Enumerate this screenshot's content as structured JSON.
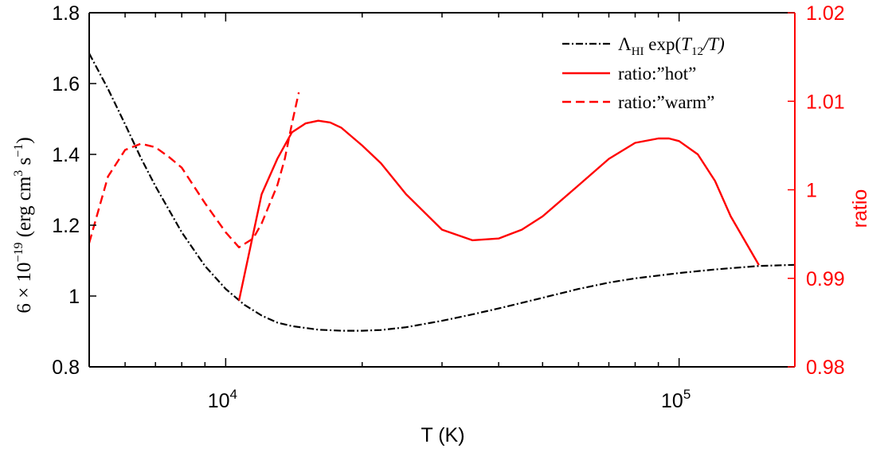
{
  "chart_data": {
    "type": "line",
    "title": "",
    "xlabel": "T (K)",
    "xscale": "log",
    "xlim": [
      5000,
      180000
    ],
    "x_ticks": [
      {
        "value": 10000,
        "base": "10",
        "exp": "4"
      },
      {
        "value": 100000,
        "base": "10",
        "exp": "5"
      }
    ],
    "y_left": {
      "label": "6 × 10⁻¹⁹ (erg cm³ s⁻¹)",
      "label_parts": {
        "coef": "6 × 10",
        "coef_exp": "−19",
        "open": " (erg cm",
        "cm_exp": "3",
        "mid": " s",
        "s_exp": "−1",
        "close": ")"
      },
      "ylim": [
        0.8,
        1.8
      ],
      "ticks": [
        "0.8",
        "1",
        "1.2",
        "1.4",
        "1.6",
        "1.8"
      ],
      "color": "#000000"
    },
    "y_right": {
      "label": "ratio",
      "ylim": [
        0.98,
        1.02
      ],
      "ticks": [
        "0.98",
        "0.99",
        "1",
        "1.01",
        "1.02"
      ],
      "color": "#ff0000"
    },
    "legend": {
      "position": "top-right",
      "entries": [
        {
          "label": "Λ_HI exp(T_12/T)",
          "parts": {
            "lambda": "Λ",
            "lambda_sub": "HI",
            "exp": " exp(",
            "t": "T",
            "t_sub": "12",
            "tail": "/T)"
          }
        },
        {
          "label": "ratio:”hot”"
        },
        {
          "label": "ratio:”warm”"
        }
      ]
    },
    "series": [
      {
        "name": "Λ_HI exp(T_12/T)",
        "axis": "left",
        "color": "#000000",
        "style": "dashdot",
        "x": [
          5000,
          5500,
          6000,
          6500,
          7000,
          8000,
          9000,
          10000,
          11000,
          12000,
          13000,
          14000,
          16000,
          18000,
          20000,
          22000,
          25000,
          30000,
          35000,
          40000,
          50000,
          60000,
          70000,
          80000,
          100000,
          120000,
          150000,
          180000
        ],
        "y": [
          1.685,
          1.585,
          1.485,
          1.39,
          1.31,
          1.18,
          1.085,
          1.02,
          0.975,
          0.945,
          0.925,
          0.915,
          0.905,
          0.902,
          0.902,
          0.904,
          0.912,
          0.93,
          0.948,
          0.965,
          0.995,
          1.02,
          1.038,
          1.05,
          1.065,
          1.075,
          1.085,
          1.088
        ]
      },
      {
        "name": "ratio:”hot”",
        "axis": "right",
        "color": "#ff0000",
        "style": "solid",
        "x": [
          10700,
          12000,
          13000,
          14000,
          15000,
          16000,
          17000,
          18000,
          20000,
          22000,
          25000,
          30000,
          35000,
          40000,
          45000,
          50000,
          60000,
          70000,
          80000,
          90000,
          95000,
          100000,
          110000,
          120000,
          130000,
          150000
        ],
        "y": [
          0.9875,
          0.9995,
          1.0035,
          1.0065,
          1.0075,
          1.0078,
          1.0076,
          1.007,
          1.005,
          1.003,
          0.9995,
          0.9955,
          0.9943,
          0.9945,
          0.9955,
          0.997,
          1.0005,
          1.0035,
          1.0053,
          1.0058,
          1.0058,
          1.0055,
          1.004,
          1.001,
          0.997,
          0.9915
        ]
      },
      {
        "name": "ratio:”warm”",
        "axis": "right",
        "color": "#ff0000",
        "style": "dashed",
        "x": [
          5000,
          5500,
          6000,
          6500,
          7000,
          7500,
          8000,
          9000,
          10000,
          10700,
          11500,
          12000,
          13000,
          13500,
          14000,
          14500
        ],
        "y": [
          0.994,
          1.0015,
          1.0045,
          1.0052,
          1.0048,
          1.0037,
          1.0025,
          0.9985,
          0.9952,
          0.9935,
          0.9945,
          0.9962,
          1.0005,
          1.0035,
          1.0075,
          1.011
        ]
      }
    ]
  }
}
